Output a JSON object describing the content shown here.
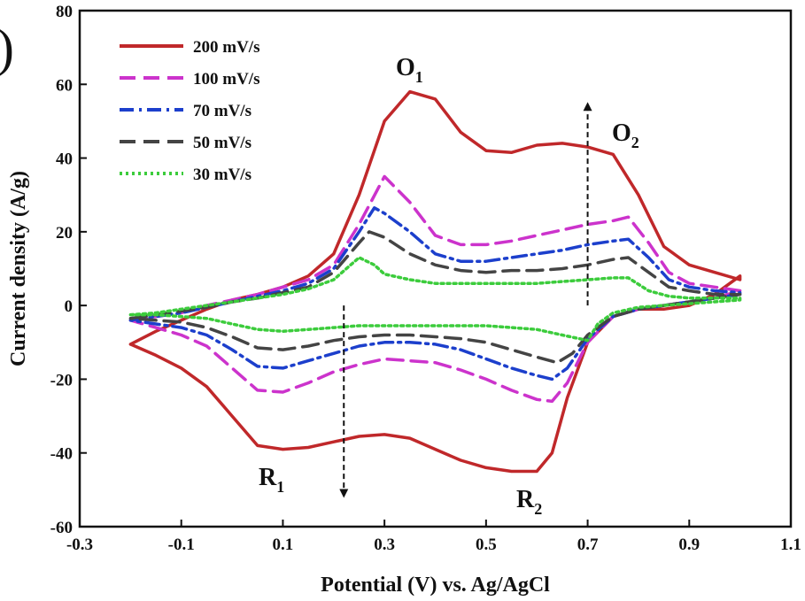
{
  "chart_data": {
    "type": "line",
    "panel_mark": ")",
    "xlabel": "Potential (V) vs. Ag/AgCl",
    "ylabel": "Current density (A/g)",
    "xlim": [
      -0.3,
      1.1
    ],
    "ylim": [
      -60,
      80
    ],
    "x_ticks": [
      "-0.3",
      "-0.1",
      "0.1",
      "0.3",
      "0.5",
      "0.7",
      "0.9",
      "1.1"
    ],
    "y_ticks": [
      "80",
      "60",
      "40",
      "20",
      "0",
      "-20",
      "-40",
      "-60"
    ],
    "legend": "top-left",
    "series": [
      {
        "name": "200 mV/s",
        "color": "#c0282a",
        "dash": "solid",
        "points": [
          [
            -0.2,
            -10.5
          ],
          [
            -0.15,
            -7
          ],
          [
            -0.1,
            -4
          ],
          [
            -0.05,
            -1
          ],
          [
            0.0,
            1.5
          ],
          [
            0.05,
            3
          ],
          [
            0.1,
            5
          ],
          [
            0.15,
            8
          ],
          [
            0.2,
            14
          ],
          [
            0.25,
            30
          ],
          [
            0.3,
            50
          ],
          [
            0.35,
            58
          ],
          [
            0.4,
            56
          ],
          [
            0.45,
            47
          ],
          [
            0.5,
            42
          ],
          [
            0.55,
            41.5
          ],
          [
            0.6,
            43.5
          ],
          [
            0.65,
            44
          ],
          [
            0.7,
            43
          ],
          [
            0.75,
            41
          ],
          [
            0.8,
            30
          ],
          [
            0.85,
            16
          ],
          [
            0.9,
            11
          ],
          [
            0.95,
            9
          ],
          [
            1.0,
            7
          ],
          [
            1.0,
            8
          ],
          [
            0.95,
            3
          ],
          [
            0.9,
            0
          ],
          [
            0.85,
            -1
          ],
          [
            0.8,
            -1
          ],
          [
            0.75,
            -3
          ],
          [
            0.7,
            -10
          ],
          [
            0.66,
            -25
          ],
          [
            0.63,
            -40
          ],
          [
            0.6,
            -45
          ],
          [
            0.55,
            -45
          ],
          [
            0.5,
            -44
          ],
          [
            0.45,
            -42
          ],
          [
            0.4,
            -39
          ],
          [
            0.35,
            -36
          ],
          [
            0.3,
            -35
          ],
          [
            0.25,
            -35.5
          ],
          [
            0.2,
            -37
          ],
          [
            0.15,
            -38.5
          ],
          [
            0.1,
            -39
          ],
          [
            0.05,
            -38
          ],
          [
            0.0,
            -30
          ],
          [
            -0.05,
            -22
          ],
          [
            -0.1,
            -17
          ],
          [
            -0.15,
            -13.5
          ],
          [
            -0.2,
            -10.5
          ]
        ]
      },
      {
        "name": "100 mV/s",
        "color": "#cc33cc",
        "dash": "dashed",
        "points": [
          [
            -0.2,
            -4
          ],
          [
            -0.15,
            -3
          ],
          [
            -0.1,
            -2
          ],
          [
            -0.05,
            0
          ],
          [
            0.0,
            1.5
          ],
          [
            0.05,
            3
          ],
          [
            0.1,
            5
          ],
          [
            0.15,
            7
          ],
          [
            0.2,
            11
          ],
          [
            0.25,
            22
          ],
          [
            0.3,
            35
          ],
          [
            0.35,
            28
          ],
          [
            0.4,
            19
          ],
          [
            0.45,
            16.5
          ],
          [
            0.5,
            16.5
          ],
          [
            0.55,
            17.5
          ],
          [
            0.6,
            19
          ],
          [
            0.65,
            20.5
          ],
          [
            0.7,
            22
          ],
          [
            0.75,
            23
          ],
          [
            0.78,
            24
          ],
          [
            0.82,
            17
          ],
          [
            0.86,
            9
          ],
          [
            0.9,
            6
          ],
          [
            0.95,
            5
          ],
          [
            1.0,
            4
          ],
          [
            1.0,
            4
          ],
          [
            0.95,
            2
          ],
          [
            0.9,
            1
          ],
          [
            0.85,
            0
          ],
          [
            0.8,
            -1
          ],
          [
            0.75,
            -3
          ],
          [
            0.7,
            -10
          ],
          [
            0.66,
            -21
          ],
          [
            0.63,
            -26
          ],
          [
            0.6,
            -25.5
          ],
          [
            0.55,
            -23
          ],
          [
            0.5,
            -20
          ],
          [
            0.45,
            -17.5
          ],
          [
            0.4,
            -15.5
          ],
          [
            0.35,
            -15
          ],
          [
            0.3,
            -14.5
          ],
          [
            0.25,
            -16
          ],
          [
            0.2,
            -18
          ],
          [
            0.15,
            -21
          ],
          [
            0.1,
            -23.5
          ],
          [
            0.05,
            -23
          ],
          [
            0.0,
            -17
          ],
          [
            -0.05,
            -11
          ],
          [
            -0.1,
            -8
          ],
          [
            -0.15,
            -6
          ],
          [
            -0.2,
            -4
          ]
        ]
      },
      {
        "name": "70 mV/s",
        "color": "#1c3fcc",
        "dash": "dashdot",
        "points": [
          [
            -0.2,
            -4
          ],
          [
            -0.15,
            -3
          ],
          [
            -0.1,
            -2
          ],
          [
            -0.05,
            -0.5
          ],
          [
            0.0,
            1
          ],
          [
            0.05,
            2.5
          ],
          [
            0.1,
            4
          ],
          [
            0.15,
            6
          ],
          [
            0.2,
            10
          ],
          [
            0.25,
            20
          ],
          [
            0.28,
            26.5
          ],
          [
            0.3,
            25
          ],
          [
            0.35,
            20
          ],
          [
            0.4,
            14
          ],
          [
            0.45,
            12
          ],
          [
            0.5,
            12
          ],
          [
            0.55,
            13
          ],
          [
            0.6,
            14
          ],
          [
            0.65,
            15
          ],
          [
            0.7,
            16.5
          ],
          [
            0.75,
            17.5
          ],
          [
            0.78,
            18
          ],
          [
            0.82,
            13
          ],
          [
            0.86,
            7
          ],
          [
            0.9,
            5
          ],
          [
            0.95,
            4
          ],
          [
            1.0,
            3.5
          ],
          [
            1.0,
            3
          ],
          [
            0.95,
            2
          ],
          [
            0.9,
            1
          ],
          [
            0.85,
            0
          ],
          [
            0.8,
            -1
          ],
          [
            0.75,
            -3
          ],
          [
            0.7,
            -9
          ],
          [
            0.66,
            -17
          ],
          [
            0.63,
            -20
          ],
          [
            0.6,
            -19
          ],
          [
            0.55,
            -17
          ],
          [
            0.5,
            -14.5
          ],
          [
            0.45,
            -12
          ],
          [
            0.4,
            -10.5
          ],
          [
            0.35,
            -10
          ],
          [
            0.3,
            -10
          ],
          [
            0.25,
            -11
          ],
          [
            0.2,
            -13
          ],
          [
            0.15,
            -15
          ],
          [
            0.1,
            -17
          ],
          [
            0.05,
            -16.5
          ],
          [
            0.0,
            -12
          ],
          [
            -0.05,
            -8
          ],
          [
            -0.1,
            -6
          ],
          [
            -0.15,
            -5
          ],
          [
            -0.2,
            -4
          ]
        ]
      },
      {
        "name": "50 mV/s",
        "color": "#444444",
        "dash": "dashed",
        "points": [
          [
            -0.2,
            -3.5
          ],
          [
            -0.15,
            -2.5
          ],
          [
            -0.1,
            -1.5
          ],
          [
            -0.05,
            -0.5
          ],
          [
            0.0,
            1
          ],
          [
            0.05,
            2
          ],
          [
            0.1,
            3.5
          ],
          [
            0.15,
            5
          ],
          [
            0.2,
            9
          ],
          [
            0.25,
            17
          ],
          [
            0.27,
            20
          ],
          [
            0.3,
            18.5
          ],
          [
            0.35,
            14
          ],
          [
            0.4,
            11
          ],
          [
            0.45,
            9.5
          ],
          [
            0.5,
            9
          ],
          [
            0.55,
            9.5
          ],
          [
            0.6,
            9.5
          ],
          [
            0.65,
            10
          ],
          [
            0.7,
            11
          ],
          [
            0.75,
            12.5
          ],
          [
            0.78,
            13
          ],
          [
            0.82,
            9
          ],
          [
            0.86,
            5
          ],
          [
            0.9,
            4
          ],
          [
            0.95,
            3
          ],
          [
            1.0,
            3
          ],
          [
            1.0,
            3
          ],
          [
            0.95,
            2
          ],
          [
            0.9,
            1
          ],
          [
            0.85,
            0
          ],
          [
            0.8,
            -1
          ],
          [
            0.75,
            -3
          ],
          [
            0.7,
            -8
          ],
          [
            0.67,
            -13
          ],
          [
            0.64,
            -15.5
          ],
          [
            0.6,
            -14
          ],
          [
            0.55,
            -12
          ],
          [
            0.5,
            -10
          ],
          [
            0.45,
            -9
          ],
          [
            0.4,
            -8.5
          ],
          [
            0.35,
            -8
          ],
          [
            0.3,
            -8
          ],
          [
            0.25,
            -8.5
          ],
          [
            0.2,
            -9.5
          ],
          [
            0.15,
            -11
          ],
          [
            0.1,
            -12
          ],
          [
            0.05,
            -11.5
          ],
          [
            0.0,
            -8.5
          ],
          [
            -0.05,
            -6
          ],
          [
            -0.1,
            -4.5
          ],
          [
            -0.15,
            -4
          ],
          [
            -0.2,
            -3.5
          ]
        ]
      },
      {
        "name": "30 mV/s",
        "color": "#3ccc3c",
        "dash": "dotted",
        "points": [
          [
            -0.2,
            -2.5
          ],
          [
            -0.15,
            -2
          ],
          [
            -0.1,
            -1
          ],
          [
            -0.05,
            0
          ],
          [
            0.0,
            1
          ],
          [
            0.05,
            2
          ],
          [
            0.1,
            3
          ],
          [
            0.15,
            4.5
          ],
          [
            0.2,
            7
          ],
          [
            0.25,
            13
          ],
          [
            0.28,
            11
          ],
          [
            0.3,
            8.5
          ],
          [
            0.35,
            7
          ],
          [
            0.4,
            6
          ],
          [
            0.45,
            6
          ],
          [
            0.5,
            6
          ],
          [
            0.55,
            6
          ],
          [
            0.6,
            6
          ],
          [
            0.65,
            6.5
          ],
          [
            0.7,
            7
          ],
          [
            0.75,
            7.5
          ],
          [
            0.78,
            7.5
          ],
          [
            0.82,
            4
          ],
          [
            0.86,
            2.5
          ],
          [
            0.9,
            2
          ],
          [
            0.95,
            2
          ],
          [
            1.0,
            2
          ],
          [
            1.0,
            1.5
          ],
          [
            0.95,
            1
          ],
          [
            0.9,
            0.5
          ],
          [
            0.85,
            0
          ],
          [
            0.8,
            -0.5
          ],
          [
            0.75,
            -2
          ],
          [
            0.72,
            -5
          ],
          [
            0.7,
            -9.5
          ],
          [
            0.65,
            -8
          ],
          [
            0.6,
            -6.5
          ],
          [
            0.55,
            -6
          ],
          [
            0.5,
            -5.5
          ],
          [
            0.45,
            -5.5
          ],
          [
            0.4,
            -5.5
          ],
          [
            0.35,
            -5.5
          ],
          [
            0.3,
            -5.5
          ],
          [
            0.25,
            -5.5
          ],
          [
            0.2,
            -6
          ],
          [
            0.15,
            -6.5
          ],
          [
            0.1,
            -7
          ],
          [
            0.05,
            -6.5
          ],
          [
            0.0,
            -5
          ],
          [
            -0.05,
            -3.5
          ],
          [
            -0.1,
            -3
          ],
          [
            -0.15,
            -2.5
          ],
          [
            -0.2,
            -2.5
          ]
        ]
      }
    ],
    "annotations": [
      {
        "main": "O",
        "sub": "1"
      },
      {
        "main": "O",
        "sub": "2"
      },
      {
        "main": "R",
        "sub": "1"
      },
      {
        "main": "R",
        "sub": "2"
      }
    ],
    "arrows": [
      {
        "direction": "up",
        "x": 0.7,
        "from": 0,
        "to": 54
      },
      {
        "direction": "down",
        "x": 0.22,
        "from": 0,
        "to": -51
      }
    ]
  }
}
